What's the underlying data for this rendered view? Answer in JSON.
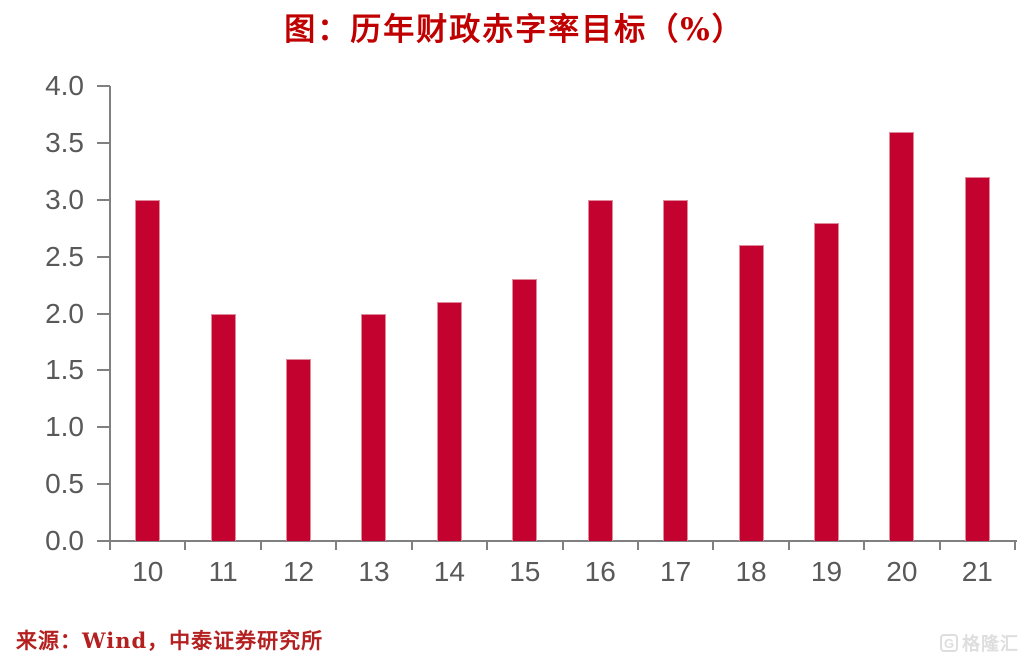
{
  "title": "图：历年财政赤字率目标（%）",
  "source": "来源：Wind，中泰证券研究所",
  "watermark": {
    "logo_letter": "G",
    "text": "格隆汇"
  },
  "colors": {
    "bar": "#C3022F",
    "bar_border": "#E08B9B",
    "title": "#C00000",
    "source_text": "#B42020",
    "axis": "#808080",
    "tick_label": "#595959",
    "watermark": "#D9D9D9",
    "background": "#FFFFFF"
  },
  "chart_data": {
    "type": "bar",
    "title": "图：历年财政赤字率目标（%）",
    "categories": [
      "10",
      "11",
      "12",
      "13",
      "14",
      "15",
      "16",
      "17",
      "18",
      "19",
      "20",
      "21"
    ],
    "values": [
      3.0,
      2.0,
      1.6,
      2.0,
      2.1,
      2.3,
      3.0,
      3.0,
      2.6,
      2.8,
      3.6,
      3.2
    ],
    "xlabel": "",
    "ylabel": "",
    "ylim": [
      0,
      4
    ],
    "ytick_step": 0.5,
    "yticks": [
      "0.0",
      "0.5",
      "1.0",
      "1.5",
      "2.0",
      "2.5",
      "3.0",
      "3.5",
      "4.0"
    ],
    "grid": false,
    "legend": null,
    "source": "来源：Wind，中泰证券研究所"
  }
}
